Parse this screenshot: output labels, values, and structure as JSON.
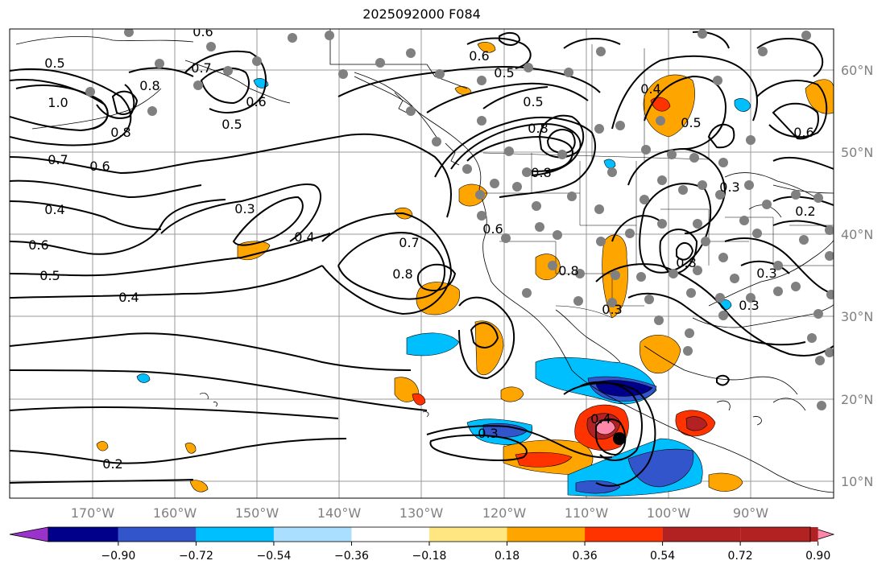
{
  "title": "2025092000 F084",
  "lat_labels": [
    "60°N",
    "50°N",
    "40°N",
    "30°N",
    "20°N",
    "10°N"
  ],
  "lon_labels": [
    "170°W",
    "160°W",
    "150°W",
    "140°W",
    "130°W",
    "120°W",
    "110°W",
    "100°W",
    "90°W"
  ],
  "colorbar": {
    "ticks": [
      "−0.90",
      "−0.72",
      "−0.54",
      "−0.36",
      "−0.18",
      "0.18",
      "0.36",
      "0.54",
      "0.72",
      "0.90"
    ],
    "colors": [
      "#9933cc",
      "#00008b",
      "#3355cc",
      "#00bfff",
      "#aadfff",
      "#ffffff",
      "#ffe680",
      "#ffa500",
      "#ff3300",
      "#b22222",
      "#ff88aa"
    ]
  },
  "contour_labels": [
    "0.6",
    "0.5",
    "1.0",
    "0.8",
    "0.7",
    "0.6",
    "0.4",
    "0.6",
    "0.5",
    "0.4",
    "0.5",
    "0.3",
    "0.4",
    "0.7",
    "0.8",
    "0.8",
    "0.6",
    "0.6",
    "0.5",
    "0.5",
    "0.4",
    "0.8",
    "0.6",
    "0.5",
    "0.8",
    "0.8",
    "0.3",
    "0.4",
    "0.3",
    "0.2",
    "0.7",
    "0.8",
    "0.6",
    "0.3",
    "0.3",
    "0.2",
    "0.3"
  ],
  "storm_marker": "black-dot"
}
